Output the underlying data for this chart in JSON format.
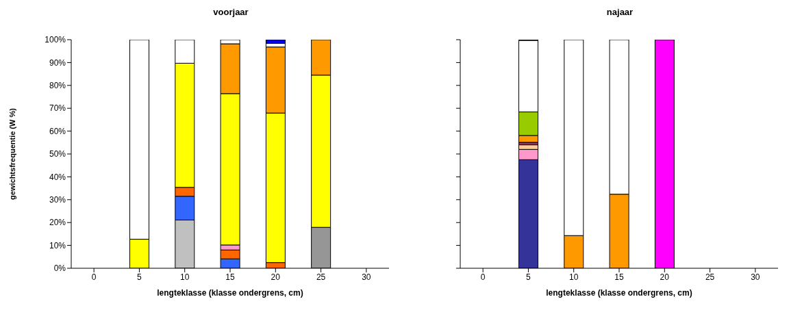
{
  "chart_data": [
    {
      "type": "bar",
      "title": "voorjaar",
      "xlabel": "lengteklasse (klasse ondergrens, cm)",
      "ylabel": "gewichtsfrequentie (W %)",
      "stacked": true,
      "categories": [
        "0",
        "5",
        "10",
        "15",
        "20",
        "25",
        "30"
      ],
      "ylim": [
        0,
        100
      ],
      "yticks": [
        {
          "value": 0,
          "label": "0%"
        },
        {
          "value": 10,
          "label": "10%"
        },
        {
          "value": 20,
          "label": "20%"
        },
        {
          "value": 30,
          "label": "30%"
        },
        {
          "value": 40,
          "label": "40%"
        },
        {
          "value": 50,
          "label": "50%"
        },
        {
          "value": 60,
          "label": "60%"
        },
        {
          "value": 70,
          "label": "70%"
        },
        {
          "value": 80,
          "label": "80%"
        },
        {
          "value": 90,
          "label": "90%"
        },
        {
          "value": 100,
          "label": "100%"
        }
      ],
      "grid": false,
      "legend": false,
      "series": [
        {
          "color": "#c0c0c0",
          "values": [
            null,
            null,
            21.1,
            null,
            null,
            null,
            null
          ]
        },
        {
          "color": "#969696",
          "values": [
            null,
            null,
            null,
            null,
            null,
            17.9,
            null
          ]
        },
        {
          "color": "#3366ff",
          "values": [
            null,
            null,
            10.4,
            4.1,
            null,
            null,
            null
          ]
        },
        {
          "color": "#ff6600",
          "values": [
            null,
            null,
            3.9,
            3.9,
            2.5,
            null,
            null
          ]
        },
        {
          "color": "#ff99cc",
          "values": [
            null,
            null,
            null,
            2.2,
            null,
            null,
            null
          ]
        },
        {
          "color": "#ffff00",
          "values": [
            null,
            12.7,
            54.3,
            66.2,
            65.4,
            66.6,
            null
          ]
        },
        {
          "color": "#ff9900",
          "values": [
            null,
            null,
            null,
            21.8,
            28.9,
            15.5,
            null
          ]
        },
        {
          "color": "#ffffff",
          "values": [
            null,
            87.3,
            10.3,
            1.8,
            1.6,
            null,
            null
          ]
        },
        {
          "color": "#0000ff",
          "values": [
            null,
            null,
            null,
            null,
            1.6,
            null,
            null
          ]
        }
      ]
    },
    {
      "type": "bar",
      "title": "najaar",
      "xlabel": "lengteklasse (klasse ondergrens, cm)",
      "stacked": true,
      "categories": [
        "0",
        "5",
        "10",
        "15",
        "20",
        "25",
        "30"
      ],
      "ylim": [
        0,
        100
      ],
      "yticks": [
        {
          "value": 0,
          "label": null
        },
        {
          "value": 10,
          "label": null
        },
        {
          "value": 20,
          "label": null
        },
        {
          "value": 30,
          "label": null
        },
        {
          "value": 40,
          "label": null
        },
        {
          "value": 50,
          "label": null
        },
        {
          "value": 60,
          "label": null
        },
        {
          "value": 70,
          "label": null
        },
        {
          "value": 80,
          "label": null
        },
        {
          "value": 90,
          "label": null
        },
        {
          "value": 100,
          "label": null
        }
      ],
      "tick_labels": "x",
      "grid": false,
      "legend": false,
      "series": [
        {
          "color": "#333399",
          "values": [
            null,
            47.5,
            null,
            null,
            null,
            null,
            null
          ]
        },
        {
          "color": "#ff99cc",
          "values": [
            null,
            4.5,
            null,
            null,
            null,
            null,
            null
          ]
        },
        {
          "color": "#ffcc99",
          "values": [
            null,
            2.0,
            null,
            null,
            null,
            null,
            null
          ]
        },
        {
          "color": "#993366",
          "values": [
            null,
            1.1,
            null,
            null,
            null,
            null,
            null
          ]
        },
        {
          "color": "#ff9900",
          "values": [
            null,
            3.0,
            14.3,
            32.4,
            null,
            null,
            null
          ]
        },
        {
          "color": "#99cc00",
          "values": [
            null,
            10.3,
            null,
            null,
            null,
            null,
            null
          ]
        },
        {
          "color": "#ff00ff",
          "values": [
            null,
            null,
            null,
            null,
            100,
            null,
            null
          ]
        },
        {
          "color": "#ffffff",
          "values": [
            null,
            31.3,
            85.7,
            67.6,
            null,
            null,
            null
          ]
        },
        {
          "color": "#000000",
          "values": [
            null,
            0.3,
            null,
            null,
            null,
            null,
            null
          ]
        }
      ]
    }
  ]
}
